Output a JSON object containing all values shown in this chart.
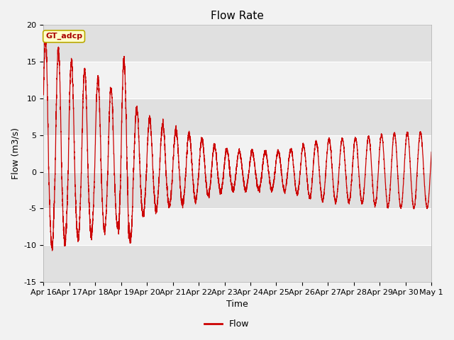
{
  "title": "Flow Rate",
  "xlabel": "Time",
  "ylabel": "Flow (m3/s)",
  "ylim": [
    -15,
    20
  ],
  "legend_label": "Flow",
  "annotation": "GT_adcp",
  "line_color": "#cc0000",
  "bg_color": "#f2f2f2",
  "plot_bg_light": "#f2f2f2",
  "plot_bg_dark": "#e0e0e0",
  "x_tick_labels": [
    "Apr 16",
    "Apr 17",
    "Apr 18",
    "Apr 19",
    "Apr 20",
    "Apr 21",
    "Apr 22",
    "Apr 23",
    "Apr 24",
    "Apr 25",
    "Apr 26",
    "Apr 27",
    "Apr 28",
    "Apr 29",
    "Apr 30",
    "May 1"
  ],
  "x_tick_positions": [
    0,
    1,
    2,
    3,
    4,
    5,
    6,
    7,
    8,
    9,
    10,
    11,
    12,
    13,
    14,
    15
  ],
  "y_ticks": [
    -15,
    -10,
    -5,
    0,
    5,
    10,
    15,
    20
  ],
  "title_fontsize": 11,
  "tick_fontsize": 8,
  "label_fontsize": 9
}
